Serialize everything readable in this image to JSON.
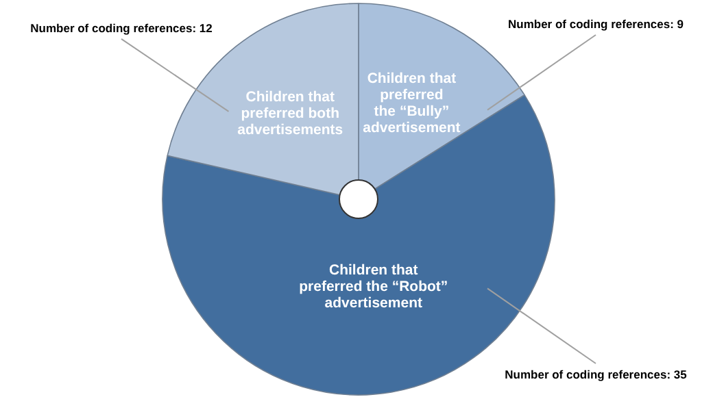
{
  "chart_data": {
    "type": "pie",
    "categories": [
      "Children that\npreferred\nthe “Bully”\nadvertisement",
      "Children that\npreferred the “Robot”\nadvertisement",
      "Children that\npreferred both\nadvertisements"
    ],
    "values": [
      9,
      35,
      12
    ],
    "colors": [
      "#a9c0dc",
      "#426e9e",
      "#b6c8de"
    ],
    "value_labels": [
      "Number of coding references: 9",
      "Number of coding references: 35",
      "Number of coding references: 12"
    ]
  }
}
